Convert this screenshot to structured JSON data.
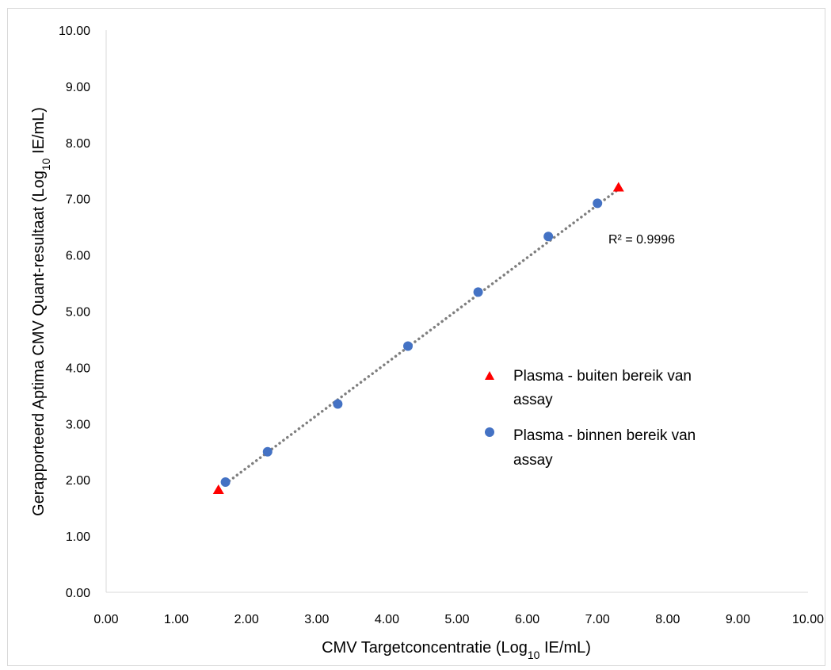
{
  "chart_data": {
    "type": "scatter",
    "xlabel": {
      "prefix": "CMV Targetconcentratie (Log",
      "sub": "10",
      "suffix": " IE/mL)"
    },
    "ylabel": {
      "prefix": "Gerapporteerd Aptima CMV Quant-resultaat (Log",
      "sub": "10",
      "suffix": " IE/mL)"
    },
    "xlim": [
      0,
      10
    ],
    "ylim": [
      0,
      10
    ],
    "x_ticks": [
      "0.00",
      "1.00",
      "2.00",
      "3.00",
      "4.00",
      "5.00",
      "6.00",
      "7.00",
      "8.00",
      "9.00",
      "10.00"
    ],
    "y_ticks": [
      "0.00",
      "1.00",
      "2.00",
      "3.00",
      "4.00",
      "5.00",
      "6.00",
      "7.00",
      "8.00",
      "9.00",
      "10.00"
    ],
    "grid": false,
    "series": [
      {
        "name_lines": [
          "Plasma - buiten bereik van",
          "assay"
        ],
        "marker": "triangle",
        "color": "#ff0000",
        "points": [
          [
            1.6,
            1.82
          ],
          [
            7.3,
            7.2
          ]
        ]
      },
      {
        "name_lines": [
          "Plasma - binnen bereik van",
          "assay"
        ],
        "marker": "circle",
        "color": "#4472c4",
        "points": [
          [
            1.7,
            1.96
          ],
          [
            2.3,
            2.5
          ],
          [
            3.3,
            3.35
          ],
          [
            4.3,
            4.38
          ],
          [
            5.3,
            5.34
          ],
          [
            6.3,
            6.33
          ],
          [
            7.0,
            6.92
          ]
        ]
      }
    ],
    "trendline": {
      "type": "linear",
      "style": "dotted",
      "color": "#7f7f7f",
      "x_range": [
        1.7,
        7.3
      ],
      "y_range": [
        1.93,
        7.17
      ]
    },
    "annotation": "R² = 0.9996",
    "legend_position": "right-middle"
  }
}
